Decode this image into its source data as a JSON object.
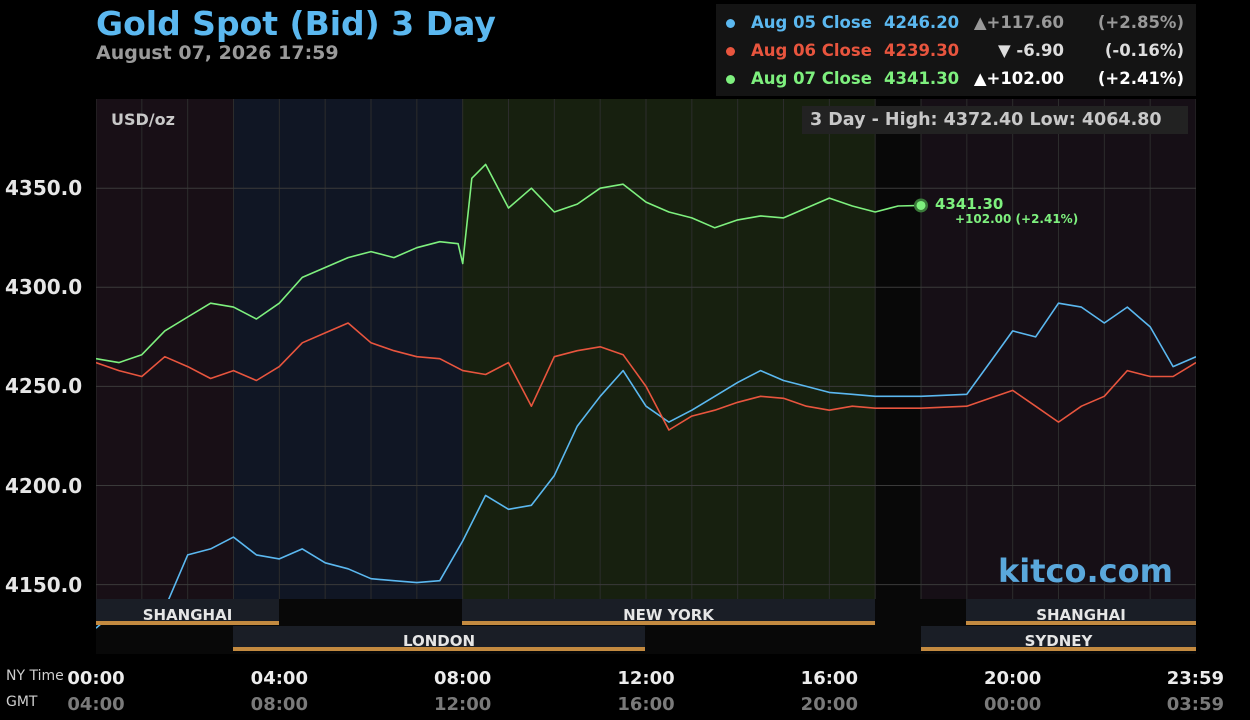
{
  "header": {
    "title": "Gold Spot (Bid) 3 Day",
    "datetime": "August 07, 2026 17:59"
  },
  "legend": [
    {
      "label": "Aug 05 Close",
      "value": "4246.20",
      "change": "▲+117.60",
      "pct": "(+2.85%)",
      "color": "#5bb8f0"
    },
    {
      "label": "Aug 06 Close",
      "value": "4239.30",
      "change": "▼    -6.90",
      "pct": "(-0.16%)",
      "color": "#e8553e"
    },
    {
      "label": "Aug 07 Close",
      "value": "4341.30",
      "change": "▲+102.00",
      "pct": "(+2.41%)",
      "color": "#7ef07e"
    }
  ],
  "plot": {
    "unit": "USD/oz",
    "hilo": "3 Day - High: 4372.40  Low: 4064.80",
    "watermark": "kitco.com",
    "last_value": "4341.30",
    "last_change": "+102.00 (+2.41%)"
  },
  "sessions": {
    "shanghai1": "SHANGHAI",
    "newyork": "NEW YORK",
    "shanghai2": "SHANGHAI",
    "london": "LONDON",
    "sydney": "SYDNEY"
  },
  "x_axis": {
    "ny_caption": "NY Time",
    "gmt_caption": "GMT",
    "ny_ticks": [
      "00:00",
      "04:00",
      "08:00",
      "12:00",
      "16:00",
      "20:00",
      "23:59"
    ],
    "gmt_ticks": [
      "04:00",
      "08:00",
      "12:00",
      "16:00",
      "20:00",
      "00:00",
      "03:59"
    ]
  },
  "chart_data": {
    "type": "line",
    "title": "Gold Spot (Bid) 3 Day",
    "ylabel": "USD/oz",
    "xlabel": "NY Time",
    "ylim": [
      4115,
      4395
    ],
    "xlim_hours": [
      0,
      24
    ],
    "y_ticks": [
      4150.0,
      4200.0,
      4250.0,
      4300.0,
      4350.0
    ],
    "grid": true,
    "legend_position": "top-right",
    "series": [
      {
        "name": "Aug 05",
        "color": "#5bb8f0",
        "x": [
          0,
          0.5,
          1,
          1.5,
          2,
          2.5,
          3,
          3.5,
          4,
          4.5,
          5,
          5.5,
          6,
          6.5,
          7,
          7.5,
          8,
          8.5,
          9,
          9.5,
          10,
          10.5,
          11,
          11.5,
          12,
          12.5,
          13,
          13.5,
          14,
          14.5,
          15,
          15.5,
          16,
          16.5,
          17,
          18,
          19,
          19.5,
          20,
          20.5,
          21,
          21.5,
          22,
          22.5,
          23,
          23.5,
          24
        ],
        "y": [
          4128,
          4138,
          4133,
          4138,
          4165,
          4168,
          4174,
          4165,
          4163,
          4168,
          4161,
          4158,
          4153,
          4152,
          4151,
          4152,
          4172,
          4195,
          4188,
          4190,
          4205,
          4230,
          4245,
          4258,
          4240,
          4232,
          4238,
          4245,
          4252,
          4258,
          4253,
          4250,
          4247,
          4246,
          4245,
          4245,
          4246,
          4262,
          4278,
          4275,
          4292,
          4290,
          4282,
          4290,
          4280,
          4260,
          4265
        ]
      },
      {
        "name": "Aug 06",
        "color": "#e8553e",
        "x": [
          0,
          0.5,
          1,
          1.5,
          2,
          2.5,
          3,
          3.5,
          4,
          4.5,
          5,
          5.5,
          6,
          6.5,
          7,
          7.5,
          8,
          8.5,
          9,
          9.5,
          10,
          10.5,
          11,
          11.5,
          12,
          12.5,
          13,
          13.5,
          14,
          14.5,
          15,
          15.5,
          16,
          16.5,
          17,
          18,
          19,
          19.5,
          20,
          20.5,
          21,
          21.5,
          22,
          22.5,
          23,
          23.5,
          24
        ],
        "y": [
          4262,
          4258,
          4255,
          4265,
          4260,
          4254,
          4258,
          4253,
          4260,
          4272,
          4277,
          4282,
          4272,
          4268,
          4265,
          4264,
          4258,
          4256,
          4262,
          4240,
          4265,
          4268,
          4270,
          4266,
          4250,
          4228,
          4235,
          4238,
          4242,
          4245,
          4244,
          4240,
          4238,
          4240,
          4239,
          4239,
          4240,
          4244,
          4248,
          4240,
          4232,
          4240,
          4245,
          4258,
          4255,
          4255,
          4262
        ]
      },
      {
        "name": "Aug 07",
        "color": "#7ef07e",
        "x": [
          0,
          0.5,
          1,
          1.5,
          2,
          2.5,
          3,
          3.5,
          4,
          4.5,
          5,
          5.5,
          6,
          6.5,
          7,
          7.5,
          7.9,
          8.0,
          8.2,
          8.5,
          9,
          9.5,
          10,
          10.5,
          11,
          11.5,
          12,
          12.5,
          13,
          13.5,
          14,
          14.5,
          15,
          15.5,
          16,
          16.5,
          17,
          17.5,
          18
        ],
        "y": [
          4264,
          4262,
          4266,
          4278,
          4285,
          4292,
          4290,
          4284,
          4292,
          4305,
          4310,
          4315,
          4318,
          4315,
          4320,
          4323,
          4322,
          4312,
          4355,
          4362,
          4340,
          4350,
          4338,
          4342,
          4350,
          4352,
          4343,
          4338,
          4335,
          4330,
          4334,
          4336,
          4335,
          4340,
          4345,
          4341,
          4338,
          4341,
          4341.3
        ]
      }
    ]
  },
  "colors": {
    "background": "#000000",
    "plot_background": "#080808",
    "session_line": "#c38a40",
    "grid": "#2c2c2c"
  }
}
